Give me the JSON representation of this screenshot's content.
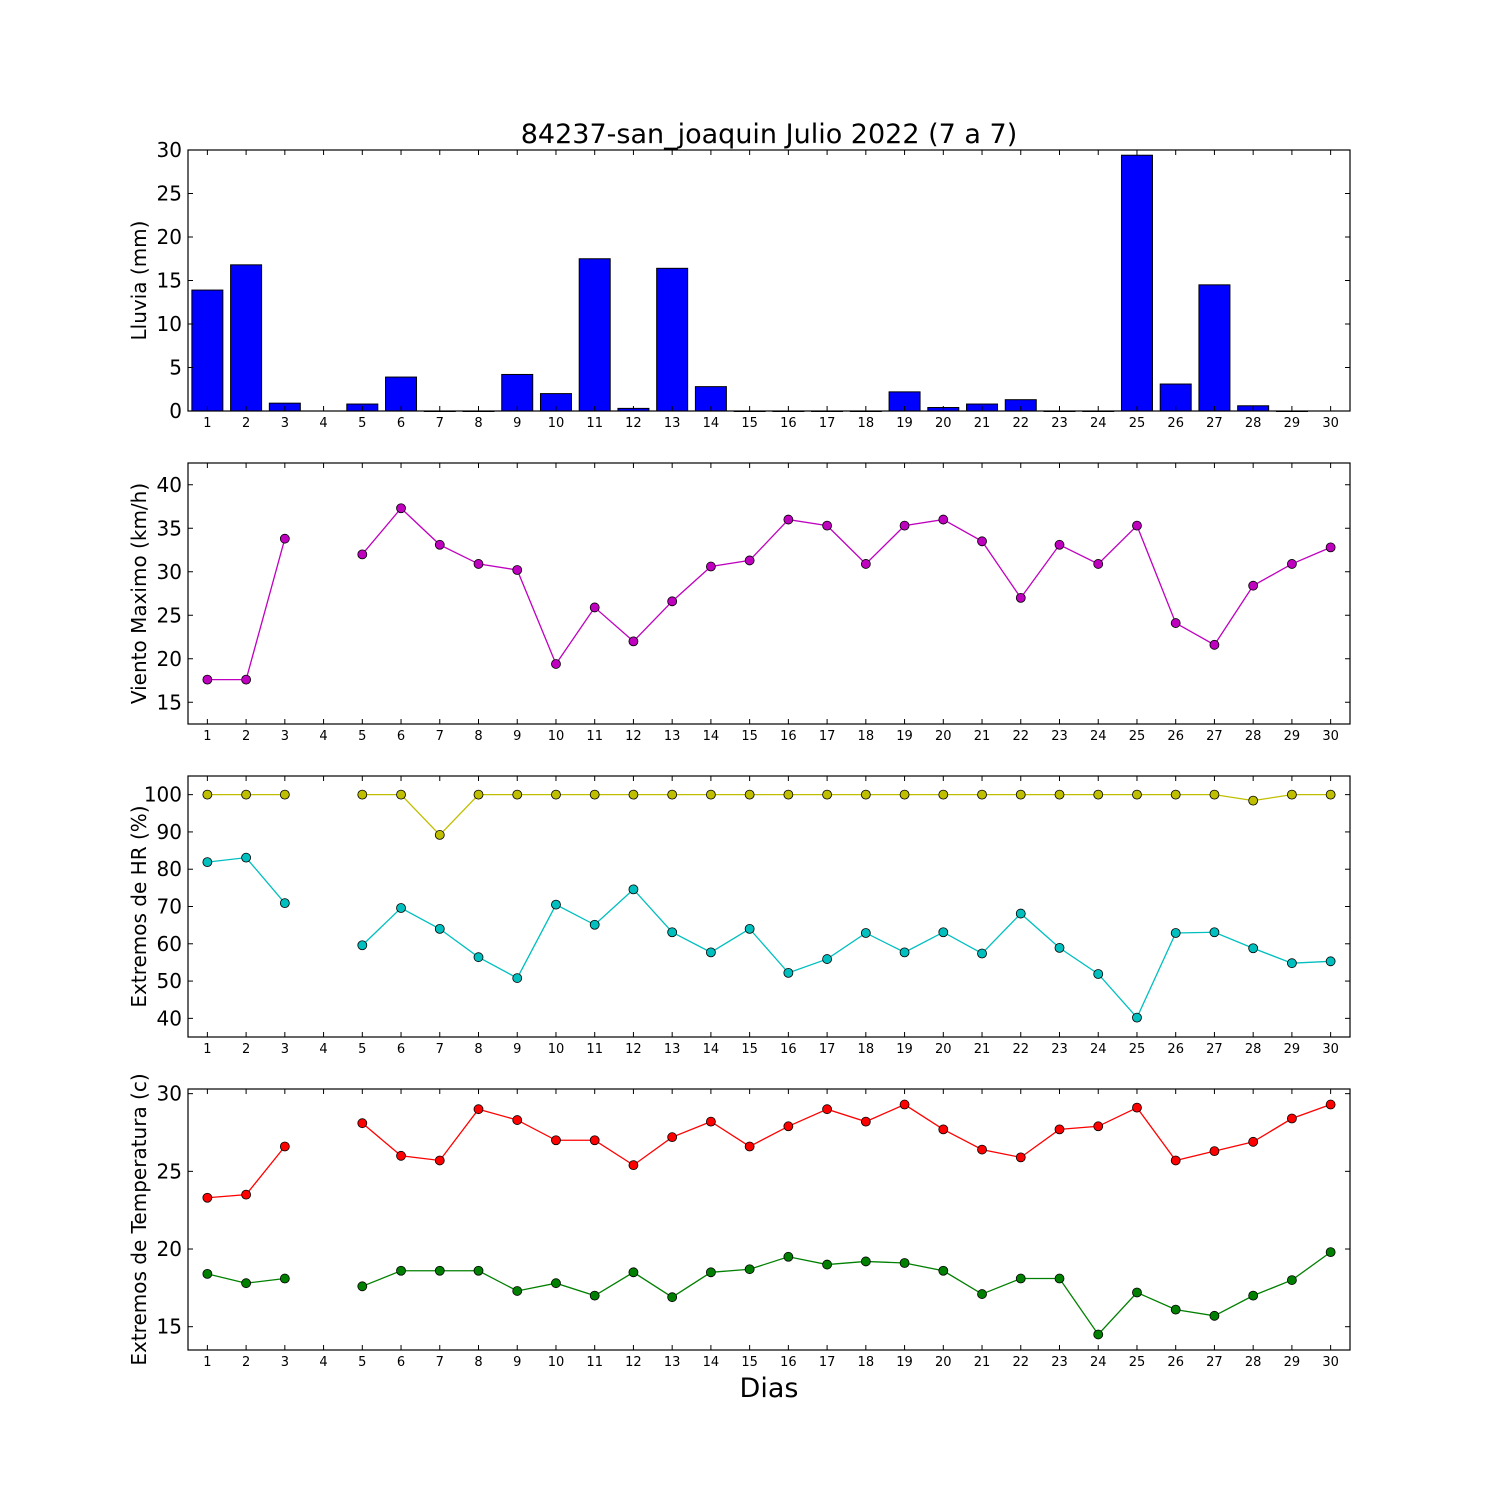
{
  "figure": {
    "title": "84237-san_joaquin Julio 2022  (7 a 7)",
    "xlabel": "Dias"
  },
  "chart_data": [
    {
      "type": "bar",
      "ylabel": "Lluvia (mm)",
      "ylim": [
        0,
        30
      ],
      "yticks": [
        0,
        5,
        10,
        15,
        20,
        25,
        30
      ],
      "categories": [
        1,
        2,
        3,
        4,
        5,
        6,
        7,
        8,
        9,
        10,
        11,
        12,
        13,
        14,
        15,
        16,
        17,
        18,
        19,
        20,
        21,
        22,
        23,
        24,
        25,
        26,
        27,
        28,
        29,
        30
      ],
      "xticks": [
        1,
        2,
        3,
        4,
        5,
        6,
        7,
        8,
        9,
        10,
        11,
        12,
        13,
        14,
        15,
        16,
        17,
        18,
        19,
        20,
        21,
        22,
        23,
        24,
        25,
        26,
        27,
        28,
        29,
        30
      ],
      "xlim": [
        0.5,
        30.5
      ],
      "series": [
        {
          "color": "#0000ff",
          "values": [
            13.9,
            16.8,
            0.9,
            null,
            0.8,
            3.9,
            0.0,
            0.0,
            4.2,
            2.0,
            17.5,
            0.3,
            16.4,
            2.8,
            0.0,
            0.0,
            0.0,
            0.0,
            2.2,
            0.4,
            0.8,
            1.3,
            0.0,
            0.0,
            29.4,
            3.1,
            14.5,
            0.6,
            0.0,
            null
          ]
        }
      ],
      "grid": false
    },
    {
      "type": "line",
      "ylabel": "Viento Maximo (km/h)",
      "ylim": [
        12.5,
        42.5
      ],
      "yticks": [
        15,
        20,
        25,
        30,
        35,
        40
      ],
      "xticks": [
        1,
        2,
        3,
        4,
        5,
        6,
        7,
        8,
        9,
        10,
        11,
        12,
        13,
        14,
        15,
        16,
        17,
        18,
        19,
        20,
        21,
        22,
        23,
        24,
        25,
        26,
        27,
        28,
        29,
        30
      ],
      "xlim": [
        0.5,
        30.5
      ],
      "x": [
        1,
        2,
        3,
        4,
        5,
        6,
        7,
        8,
        9,
        10,
        11,
        12,
        13,
        14,
        15,
        16,
        17,
        18,
        19,
        20,
        21,
        22,
        23,
        24,
        25,
        26,
        27,
        28,
        29,
        30
      ],
      "series": [
        {
          "color": "#bf00bf",
          "values": [
            17.6,
            17.6,
            33.8,
            null,
            32.0,
            37.3,
            33.1,
            30.9,
            30.2,
            19.4,
            25.9,
            22.0,
            26.6,
            30.6,
            31.3,
            36.0,
            35.3,
            30.9,
            35.3,
            36.0,
            33.5,
            27.0,
            33.1,
            30.9,
            35.3,
            24.1,
            21.6,
            28.4,
            30.9,
            32.8
          ]
        }
      ],
      "grid": false
    },
    {
      "type": "line",
      "ylabel": "Extremos de HR (%)",
      "ylim": [
        35,
        105
      ],
      "yticks": [
        40,
        50,
        60,
        70,
        80,
        90,
        100
      ],
      "xticks": [
        1,
        2,
        3,
        4,
        5,
        6,
        7,
        8,
        9,
        10,
        11,
        12,
        13,
        14,
        15,
        16,
        17,
        18,
        19,
        20,
        21,
        22,
        23,
        24,
        25,
        26,
        27,
        28,
        29,
        30
      ],
      "xlim": [
        0.5,
        30.5
      ],
      "x": [
        1,
        2,
        3,
        4,
        5,
        6,
        7,
        8,
        9,
        10,
        11,
        12,
        13,
        14,
        15,
        16,
        17,
        18,
        19,
        20,
        21,
        22,
        23,
        24,
        25,
        26,
        27,
        28,
        29,
        30
      ],
      "series": [
        {
          "color": "#bfbf00",
          "values": [
            100,
            100,
            100,
            null,
            100,
            100,
            89.2,
            100,
            100,
            100,
            100,
            100,
            100,
            100,
            100,
            100,
            100,
            100,
            100,
            100,
            100,
            100,
            100,
            100,
            100,
            100,
            100,
            98.4,
            100,
            100
          ]
        },
        {
          "color": "#00bfbf",
          "values": [
            81.9,
            83.1,
            70.9,
            null,
            59.6,
            69.6,
            64.0,
            56.4,
            50.8,
            70.5,
            65.1,
            74.6,
            63.1,
            57.7,
            64.0,
            52.2,
            55.9,
            62.9,
            57.7,
            63.1,
            57.4,
            68.1,
            58.9,
            51.9,
            40.2,
            62.9,
            63.1,
            58.8,
            54.8,
            55.3
          ]
        }
      ],
      "grid": false
    },
    {
      "type": "line",
      "ylabel": "Extremos de Temperatura (c)",
      "ylim": [
        13.5,
        30.3
      ],
      "yticks": [
        15,
        20,
        25,
        30
      ],
      "xticks": [
        1,
        2,
        3,
        4,
        5,
        6,
        7,
        8,
        9,
        10,
        11,
        12,
        13,
        14,
        15,
        16,
        17,
        18,
        19,
        20,
        21,
        22,
        23,
        24,
        25,
        26,
        27,
        28,
        29,
        30
      ],
      "xlim": [
        0.5,
        30.5
      ],
      "x": [
        1,
        2,
        3,
        4,
        5,
        6,
        7,
        8,
        9,
        10,
        11,
        12,
        13,
        14,
        15,
        16,
        17,
        18,
        19,
        20,
        21,
        22,
        23,
        24,
        25,
        26,
        27,
        28,
        29,
        30
      ],
      "series": [
        {
          "color": "#ff0000",
          "values": [
            23.3,
            23.5,
            26.6,
            null,
            28.1,
            26.0,
            25.7,
            29.0,
            28.3,
            27.0,
            27.0,
            25.4,
            27.2,
            28.2,
            26.6,
            27.9,
            29.0,
            28.2,
            29.3,
            27.7,
            26.4,
            25.9,
            27.7,
            27.9,
            29.1,
            25.7,
            26.3,
            26.9,
            28.4,
            29.3
          ]
        },
        {
          "color": "#008000",
          "values": [
            18.4,
            17.8,
            18.1,
            null,
            17.6,
            18.6,
            18.6,
            18.6,
            17.3,
            17.8,
            17.0,
            18.5,
            16.9,
            18.5,
            18.7,
            19.5,
            19.0,
            19.2,
            19.1,
            18.6,
            17.1,
            18.1,
            18.1,
            14.5,
            17.2,
            16.1,
            15.7,
            17.0,
            18.0,
            19.8
          ]
        }
      ],
      "grid": false
    }
  ]
}
